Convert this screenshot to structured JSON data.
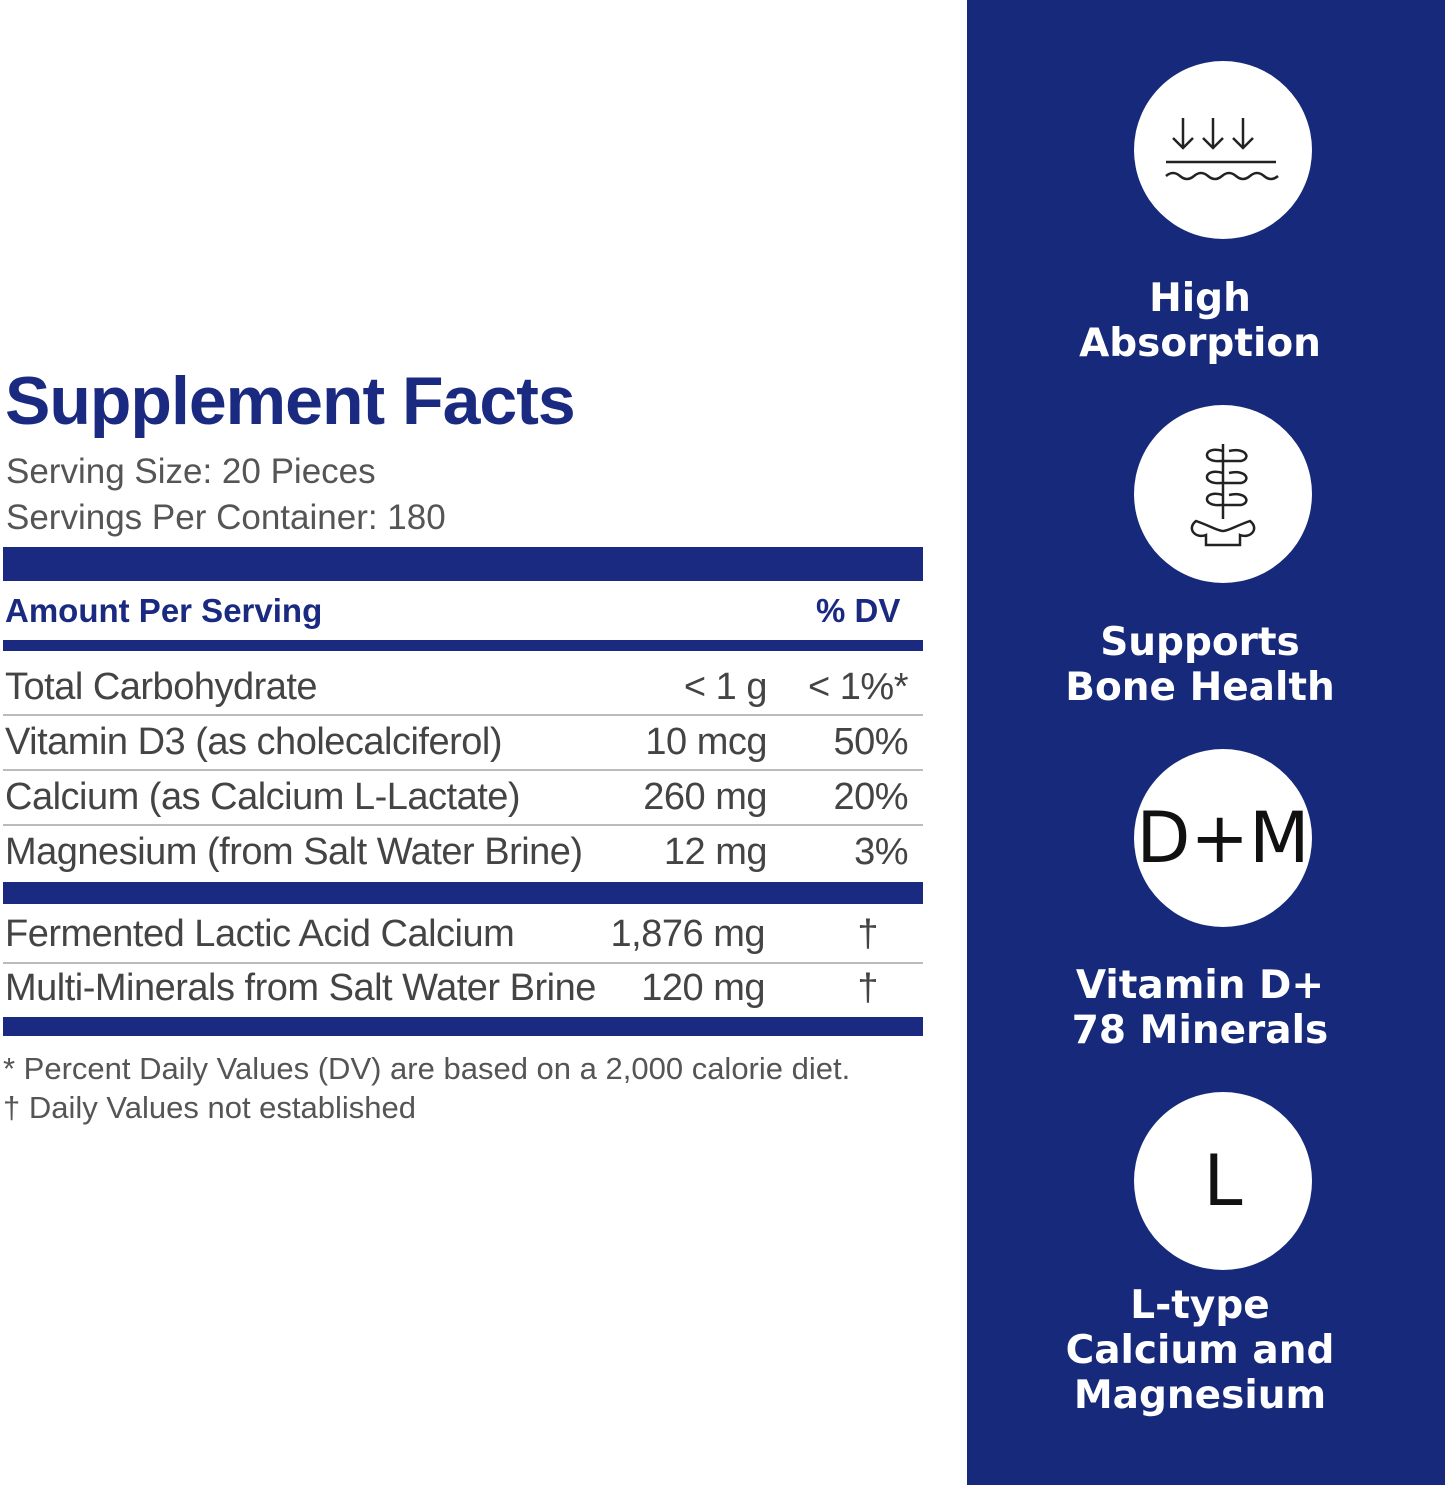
{
  "facts": {
    "title": "Supplement Facts",
    "serving_size": "Serving Size: 20 Pieces",
    "servings_per_container": "Servings Per Container: 180",
    "header_amount": "Amount Per Serving",
    "header_dv": "% DV",
    "rows": [
      {
        "name": "Total Carbohydrate",
        "amount": "< 1 g",
        "dv": "< 1%*"
      },
      {
        "name": "Vitamin D3 (as cholecalciferol)",
        "amount": "10 mcg",
        "dv": "50%"
      },
      {
        "name": "Calcium (as Calcium L-Lactate)",
        "amount": "260 mg",
        "dv": "20%"
      },
      {
        "name": "Magnesium (from Salt Water Brine)",
        "amount": "12 mg",
        "dv": "3%"
      }
    ],
    "other_rows": [
      {
        "name": "Fermented Lactic Acid Calcium",
        "amount": "1,876 mg",
        "dv": "†"
      },
      {
        "name": "Multi-Minerals from Salt Water Brine",
        "amount": "120 mg",
        "dv": "†"
      }
    ],
    "footnote1": "* Percent Daily Values (DV) are based on a 2,000 calorie diet.",
    "footnote2": "† Daily Values not established"
  },
  "features": [
    {
      "icon": "absorption-icon",
      "line1": "High",
      "line2": "Absorption"
    },
    {
      "icon": "spine-icon",
      "line1": "Supports",
      "line2": "Bone Health"
    },
    {
      "icon": "d-plus-m-icon",
      "glyph": "D+M",
      "line1": "Vitamin D+",
      "line2": "78 Minerals"
    },
    {
      "icon": "l-icon",
      "glyph": "L",
      "line1": "L-type",
      "line2": "Calcium and",
      "line3": "Magnesium"
    }
  ],
  "colors": {
    "navy": "#17297a",
    "text": "#444444"
  }
}
